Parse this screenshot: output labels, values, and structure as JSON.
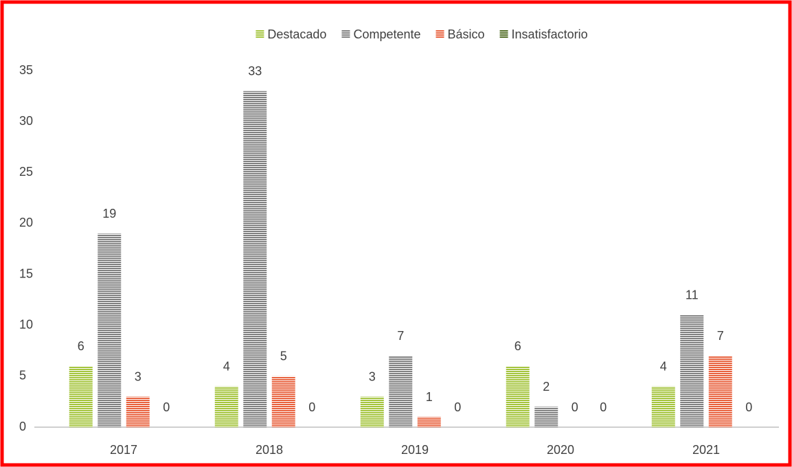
{
  "chart_data": {
    "type": "bar",
    "categories": [
      "2017",
      "2018",
      "2019",
      "2020",
      "2021"
    ],
    "series": [
      {
        "name": "Destacado",
        "color": "#a4c43c",
        "values": [
          6,
          4,
          3,
          6,
          4
        ]
      },
      {
        "name": "Competente",
        "color": "#808080",
        "values": [
          19,
          33,
          7,
          2,
          11
        ]
      },
      {
        "name": "Básico",
        "color": "#e8603c",
        "values": [
          3,
          5,
          1,
          0,
          7
        ]
      },
      {
        "name": "Insatisfactorio",
        "color": "#4f6b22",
        "values": [
          0,
          0,
          0,
          0,
          0
        ]
      }
    ],
    "ylim": [
      0,
      35
    ],
    "yticks": [
      0,
      5,
      10,
      15,
      20,
      25,
      30,
      35
    ],
    "grid": false,
    "legend": "top"
  }
}
